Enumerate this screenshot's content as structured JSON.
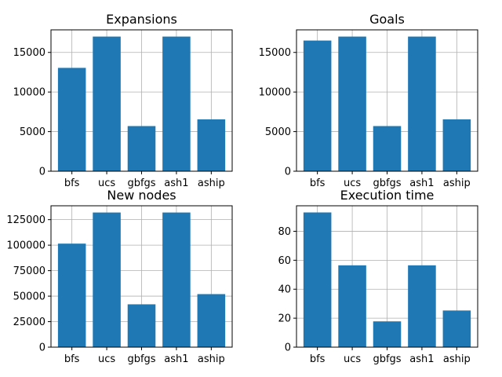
{
  "chart_data": [
    {
      "type": "bar",
      "title": "Expansions",
      "categories": [
        "bfs",
        "ucs",
        "gbfgs",
        "ash1",
        "aship"
      ],
      "values": [
        13050,
        17000,
        5700,
        17000,
        6550
      ],
      "ylim": [
        0,
        17850
      ],
      "yticks": [
        0,
        5000,
        10000,
        15000
      ],
      "ytick_labels": [
        "0",
        "5000",
        "10000",
        "15000"
      ],
      "grid": true,
      "bar_color": "#1f77b4"
    },
    {
      "type": "bar",
      "title": "Goals",
      "categories": [
        "bfs",
        "ucs",
        "gbfgs",
        "ash1",
        "aship"
      ],
      "values": [
        16500,
        17000,
        5700,
        17000,
        6550
      ],
      "ylim": [
        0,
        17850
      ],
      "yticks": [
        0,
        5000,
        10000,
        15000
      ],
      "ytick_labels": [
        "0",
        "5000",
        "10000",
        "15000"
      ],
      "grid": true,
      "bar_color": "#1f77b4"
    },
    {
      "type": "bar",
      "title": "New nodes",
      "categories": [
        "bfs",
        "ucs",
        "gbfgs",
        "ash1",
        "aship"
      ],
      "values": [
        101500,
        132000,
        42000,
        132000,
        52000
      ],
      "ylim": [
        0,
        138600
      ],
      "yticks": [
        0,
        25000,
        50000,
        75000,
        100000,
        125000
      ],
      "ytick_labels": [
        "0",
        "25000",
        "50000",
        "75000",
        "100000",
        "125000"
      ],
      "grid": true,
      "bar_color": "#1f77b4"
    },
    {
      "type": "bar",
      "title": "Execution time",
      "categories": [
        "bfs",
        "ucs",
        "gbfgs",
        "ash1",
        "aship"
      ],
      "values": [
        93,
        56.5,
        17.8,
        56.5,
        25.3
      ],
      "ylim": [
        0,
        97.6
      ],
      "yticks": [
        0,
        20,
        40,
        60,
        80
      ],
      "ytick_labels": [
        "0",
        "20",
        "40",
        "60",
        "80"
      ],
      "grid": true,
      "bar_color": "#1f77b4"
    }
  ]
}
